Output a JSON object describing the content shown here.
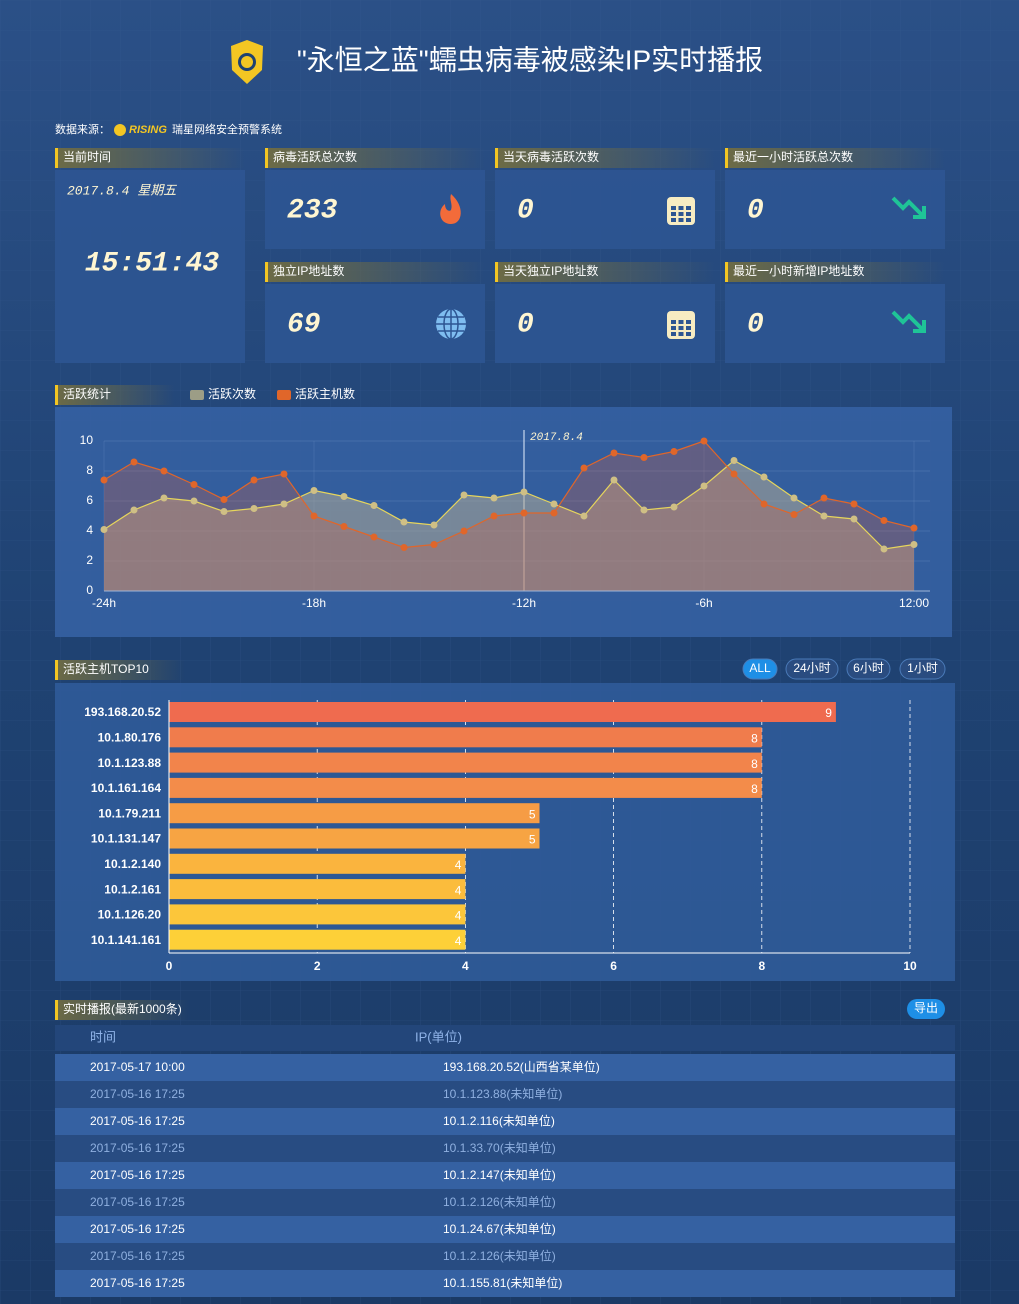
{
  "header": {
    "title": "\"永恒之蓝\"蠕虫病毒被感染IP实时播报"
  },
  "source": {
    "label": "数据来源：",
    "brand": "RISING",
    "name": "瑞星网络安全预警系统"
  },
  "current": {
    "label": "当前时间",
    "date": "2017.8.4 星期五",
    "time": "15:51:43"
  },
  "cards": [
    {
      "label": "病毒活跃总次数",
      "value": 233
    },
    {
      "label": "当天病毒活跃次数",
      "value": 0
    },
    {
      "label": "最近一小时活跃总次数",
      "value": 0
    },
    {
      "label": "独立IP地址数",
      "value": 69
    },
    {
      "label": "当天独立IP地址数",
      "value": 0
    },
    {
      "label": "最近一小时新增IP地址数",
      "value": 0
    }
  ],
  "chart_data": [
    {
      "type": "line",
      "title": "活跃统计",
      "categories": [
        "-24h",
        null,
        null,
        null,
        null,
        null,
        null,
        "-18h",
        null,
        null,
        null,
        null,
        null,
        null,
        "-12h",
        null,
        null,
        null,
        null,
        null,
        "-6h",
        null,
        null,
        null,
        null,
        null,
        null,
        "12:00"
      ],
      "series": [
        {
          "name": "活跃次数",
          "color": "#e6d55c",
          "values": [
            4.1,
            5.4,
            6.2,
            6.0,
            5.3,
            5.5,
            5.8,
            6.7,
            6.3,
            5.7,
            4.6,
            4.4,
            6.4,
            6.2,
            6.6,
            5.8,
            5.0,
            7.4,
            5.4,
            5.6,
            7.0,
            8.7,
            7.6,
            6.2,
            5.0,
            4.8,
            2.8,
            3.1
          ]
        },
        {
          "name": "活跃主机数",
          "color": "#e0662a",
          "values": [
            7.4,
            8.6,
            8.0,
            7.1,
            6.1,
            7.4,
            7.8,
            5.0,
            4.3,
            3.6,
            2.9,
            3.1,
            4.0,
            5.0,
            5.2,
            5.2,
            8.2,
            9.2,
            8.9,
            9.3,
            10,
            7.8,
            5.8,
            5.1,
            6.2,
            5.8,
            4.7,
            4.2
          ]
        }
      ],
      "annotation": {
        "text": "2017.8.4",
        "x": "-12h"
      },
      "ylim": [
        0,
        10
      ],
      "yticks": [
        0,
        2,
        4,
        6,
        8,
        10
      ],
      "grid": true
    },
    {
      "type": "hbar",
      "title": "活跃主机TOP10",
      "categories": [
        "193.168.20.52",
        "10.1.80.176",
        "10.1.123.88",
        "10.1.161.164",
        "10.1.79.211",
        "10.1.131.147",
        "10.1.2.140",
        "10.1.2.161",
        "10.1.126.20",
        "10.1.141.161"
      ],
      "values": [
        9,
        8,
        8,
        8,
        5,
        5,
        4,
        4,
        4,
        4
      ],
      "colors": [
        "#ef6b4f",
        "#f07c4c",
        "#f2844b",
        "#f38c4a",
        "#f69c45",
        "#f7a443",
        "#fab43e",
        "#fbbc3c",
        "#fcc63a",
        "#fdd038"
      ],
      "xlim": [
        0,
        10
      ],
      "xticks": [
        0,
        2,
        4,
        6,
        8,
        10
      ],
      "grid": true
    }
  ],
  "filters": [
    "ALL",
    "24小时",
    "6小时",
    "1小时"
  ],
  "live": {
    "title": "实时播报(最新1000条)",
    "export": "导出",
    "columns": [
      "时间",
      "IP(单位)"
    ],
    "rows": [
      [
        "2017-05-17 10:00",
        "193.168.20.52(山西省某单位)"
      ],
      [
        "2017-05-16 17:25",
        "10.1.123.88(未知单位)"
      ],
      [
        "2017-05-16 17:25",
        "10.1.2.116(未知单位)"
      ],
      [
        "2017-05-16 17:25",
        "10.1.33.70(未知单位)"
      ],
      [
        "2017-05-16 17:25",
        "10.1.2.147(未知单位)"
      ],
      [
        "2017-05-16 17:25",
        "10.1.2.126(未知单位)"
      ],
      [
        "2017-05-16 17:25",
        "10.1.24.67(未知单位)"
      ],
      [
        "2017-05-16 17:25",
        "10.1.2.126(未知单位)"
      ],
      [
        "2017-05-16 17:25",
        "10.1.155.81(未知单位)"
      ]
    ]
  }
}
